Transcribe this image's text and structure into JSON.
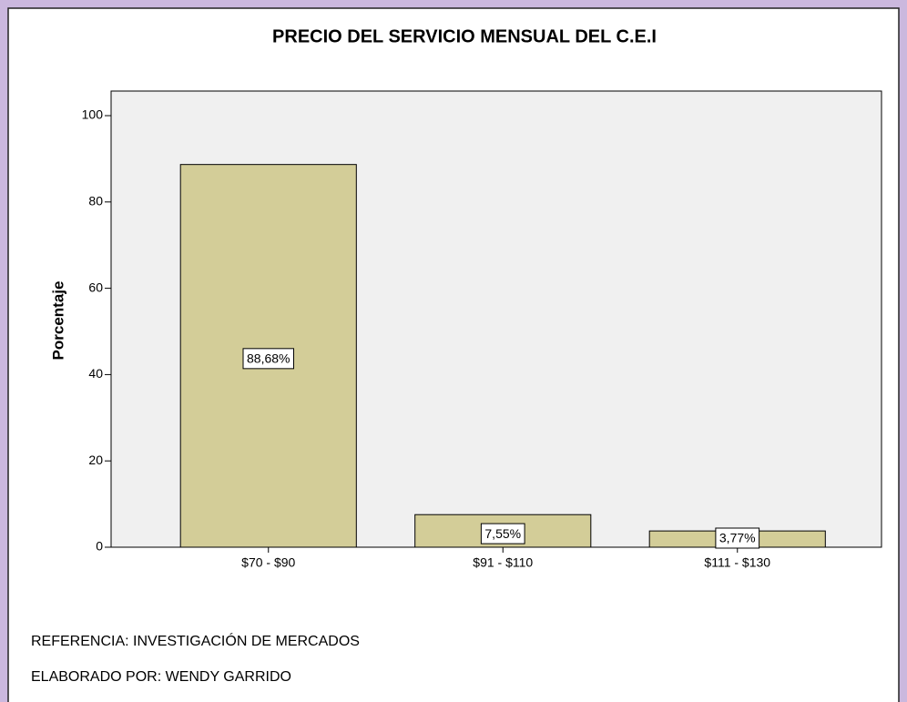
{
  "chart_data": {
    "type": "bar",
    "title": "PRECIO DEL SERVICIO MENSUAL DEL C.E.I",
    "y_label": "Porcentaje",
    "categories": [
      "$70 - $90",
      "$91 - $110",
      "$111 - $130"
    ],
    "values": [
      88.68,
      7.55,
      3.77
    ],
    "value_labels": [
      "88,68%",
      "7,55%",
      "3,77%"
    ],
    "color": "#d3cd98",
    "ylim": [
      0,
      105.7
    ],
    "yticks": [
      0,
      20,
      40,
      60,
      80,
      100
    ],
    "grid": false,
    "annotations": [
      "REFERENCIA: INVESTIGACIÓN DE MERCADOS",
      "ELABORADO POR: WENDY GARRIDO"
    ]
  }
}
